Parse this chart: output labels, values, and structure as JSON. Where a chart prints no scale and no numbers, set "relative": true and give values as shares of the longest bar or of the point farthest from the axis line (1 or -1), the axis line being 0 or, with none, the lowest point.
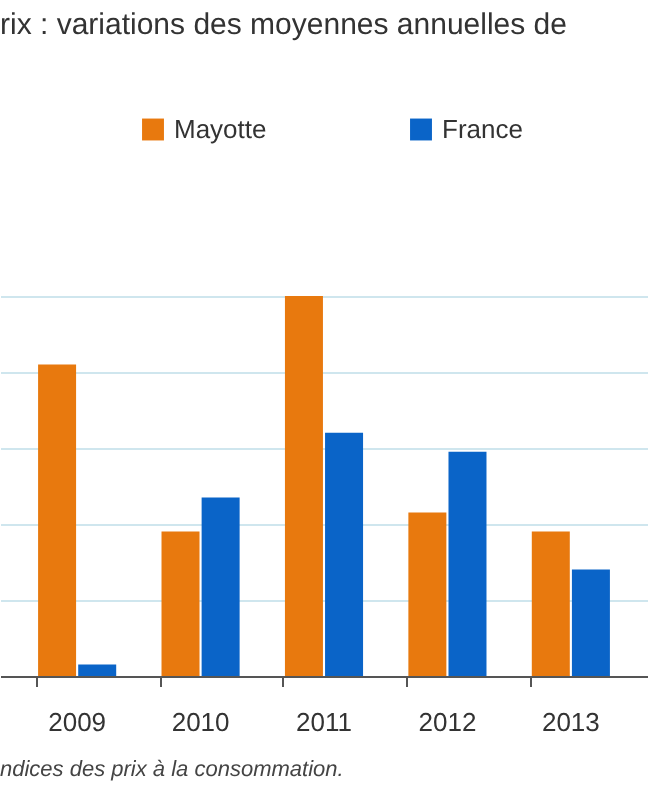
{
  "chart_data": {
    "type": "bar",
    "title": "rix : variations des moyennes annuelles de",
    "relative": true,
    "categories": [
      "2009",
      "2010",
      "2011",
      "2012",
      "2013"
    ],
    "series": [
      {
        "name": "Mayotte",
        "color": "#e8790e",
        "values": [
          0.82,
          0.38,
          1,
          0.43,
          0.38
        ]
      },
      {
        "name": "France",
        "color": "#0a64c8",
        "values": [
          0.03,
          0.47,
          0.64,
          0.59,
          0.28
        ]
      }
    ],
    "legend": "top",
    "grid": "y",
    "annotations": [
      "ndices des prix à la consommation."
    ]
  }
}
